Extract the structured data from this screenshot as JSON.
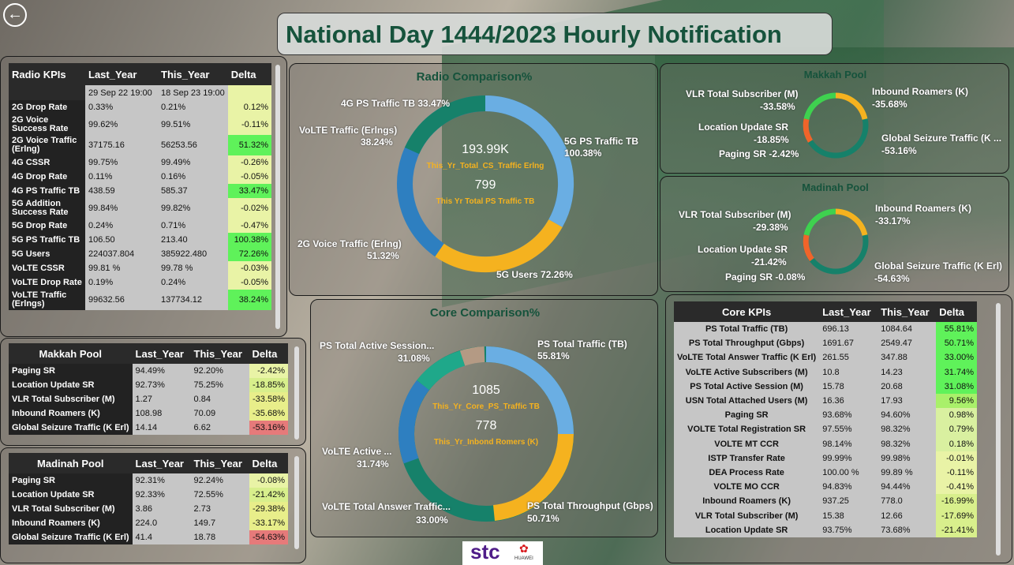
{
  "title": "National Day 1444/2023 Hourly Notification",
  "radio": {
    "headers": [
      "Radio KPIs",
      "Last_Year",
      "This_Year",
      "Delta"
    ],
    "dates": [
      "29 Sep 22 19:00",
      "18 Sep 23 19:00"
    ],
    "rows": [
      [
        "2G Drop Rate",
        "0.33%",
        "0.21%",
        "0.12%"
      ],
      [
        "2G Voice Success Rate",
        "99.62%",
        "99.51%",
        "-0.11%"
      ],
      [
        "2G Voice Traffic (Erlng)",
        "37175.16",
        "56253.56",
        "51.32%"
      ],
      [
        "4G CSSR",
        "99.75%",
        "99.49%",
        "-0.26%"
      ],
      [
        "4G Drop Rate",
        "0.11%",
        "0.16%",
        "-0.05%"
      ],
      [
        "4G PS Traffic TB",
        "438.59",
        "585.37",
        "33.47%"
      ],
      [
        "5G Addition Success Rate",
        "99.84%",
        "99.82%",
        "-0.02%"
      ],
      [
        "5G Drop Rate",
        "0.24%",
        "0.71%",
        "-0.47%"
      ],
      [
        "5G PS Traffic TB",
        "106.50",
        "213.40",
        "100.38%"
      ],
      [
        "5G Users",
        "224037.804",
        "385922.480",
        "72.26%"
      ],
      [
        "VoLTE CSSR",
        "99.81 %",
        "99.78 %",
        "-0.03%"
      ],
      [
        "VoLTE Drop Rate",
        "0.19%",
        "0.24%",
        "-0.05%"
      ],
      [
        "VoLTE Traffic (Erlngs)",
        "99632.56",
        "137734.12",
        "38.24%"
      ]
    ]
  },
  "makkah": {
    "headers": [
      "Makkah Pool",
      "Last_Year",
      "This_Year",
      "Delta"
    ],
    "rows": [
      [
        "Paging SR",
        "94.49%",
        "92.20%",
        "-2.42%"
      ],
      [
        "Location Update SR",
        "92.73%",
        "75.25%",
        "-18.85%"
      ],
      [
        "VLR Total Subscriber (M)",
        "1.27",
        "0.84",
        "-33.58%"
      ],
      [
        "Inbound Roamers (K)",
        "108.98",
        "70.09",
        "-35.68%"
      ],
      [
        "Global Seizure Traffic (K Erl)",
        "14.14",
        "6.62",
        "-53.16%"
      ]
    ]
  },
  "madinah": {
    "headers": [
      "Madinah Pool",
      "Last_Year",
      "This_Year",
      "Delta"
    ],
    "rows": [
      [
        "Paging SR",
        "92.31%",
        "92.24%",
        "-0.08%"
      ],
      [
        "Location Update SR",
        "92.33%",
        "72.55%",
        "-21.42%"
      ],
      [
        "VLR Total Subscriber (M)",
        "3.86",
        "2.73",
        "-29.38%"
      ],
      [
        "Inbound Roamers (K)",
        "224.0",
        "149.7",
        "-33.17%"
      ],
      [
        "Global Seizure Traffic (K Erl)",
        "41.4",
        "18.78",
        "-54.63%"
      ]
    ]
  },
  "core": {
    "headers": [
      "Core KPIs",
      "Last_Year",
      "This_Year",
      "Delta"
    ],
    "rows": [
      [
        "PS Total Traffic (TB)",
        "696.13",
        "1084.64",
        "55.81%"
      ],
      [
        "PS Total Throughput (Gbps)",
        "1691.67",
        "2549.47",
        "50.71%"
      ],
      [
        "VoLTE Total Answer Traffic (K Erl)",
        "261.55",
        "347.88",
        "33.00%"
      ],
      [
        "VoLTE Active Subscribers (M)",
        "10.8",
        "14.23",
        "31.74%"
      ],
      [
        "PS Total Active Session (M)",
        "15.78",
        "20.68",
        "31.08%"
      ],
      [
        "USN Total Attached Users (M)",
        "16.36",
        "17.93",
        "9.56%"
      ],
      [
        "Paging SR",
        "93.68%",
        "94.60%",
        "0.98%"
      ],
      [
        "VOLTE Total Registration SR",
        "97.55%",
        "98.32%",
        "0.79%"
      ],
      [
        "VOLTE MT CCR",
        "98.14%",
        "98.32%",
        "0.18%"
      ],
      [
        "ISTP Transfer Rate",
        "99.99%",
        "99.98%",
        "-0.01%"
      ],
      [
        "DEA Process Rate",
        "100.00 %",
        "99.89 %",
        "-0.11%"
      ],
      [
        "VOLTE MO CCR",
        "94.83%",
        "94.44%",
        "-0.41%"
      ],
      [
        "Inbound Roamers (K)",
        "937.25",
        "778.0",
        "-16.99%"
      ],
      [
        "VLR Total Subscriber (M)",
        "15.38",
        "12.66",
        "-17.69%"
      ],
      [
        "Location Update SR",
        "93.75%",
        "73.68%",
        "-21.41%"
      ]
    ]
  },
  "radio_donut": {
    "title": "Radio Comparison%",
    "v1": "193.99K",
    "l1": "This_Yr_Total_CS_Traffic Erlng",
    "v2": "799",
    "l2": "This Yr Total PS Traffic TB",
    "labels": [
      "4G PS Traffic TB 33.47%",
      "VoLTE Traffic (Erlngs)",
      "38.24%",
      "5G PS Traffic TB",
      "100.38%",
      "2G Voice Traffic (Erlng)",
      "51.32%",
      "5G Users 72.26%"
    ]
  },
  "core_donut": {
    "title": "Core Comparison%",
    "v1": "1085",
    "l1": "This_Yr_Core_PS_Traffic TB",
    "v2": "778",
    "l2": "This_Yr_Inbond Romers (K)",
    "labels": [
      "PS Total Active Session...",
      "31.08%",
      "PS Total Traffic (TB)",
      "55.81%",
      "VoLTE Active ...",
      "31.74%",
      "VoLTE Total Answer Traffic...",
      "33.00%",
      "PS Total Throughput (Gbps)",
      "50.71%"
    ]
  },
  "makkah_donut": {
    "title": "Makkah Pool",
    "labels": [
      "VLR Total Subscriber (M)",
      "-33.58%",
      "Inbound Roamers (K)",
      "-35.68%",
      "Location Update SR",
      "-18.85%",
      "Paging SR -2.42%",
      "Global Seizure Traffic (K ...",
      "-53.16%"
    ]
  },
  "madinah_donut": {
    "title": "Madinah Pool",
    "labels": [
      "VLR Total Subscriber (M)",
      "-29.38%",
      "Inbound Roamers (K)",
      "-33.17%",
      "Location Update SR",
      "-21.42%",
      "Paging SR -0.08%",
      "Global Seizure Traffic (K Erl)",
      "-54.63%"
    ]
  },
  "logo": {
    "brand": "stc",
    "partner": "HUAWEI"
  }
}
